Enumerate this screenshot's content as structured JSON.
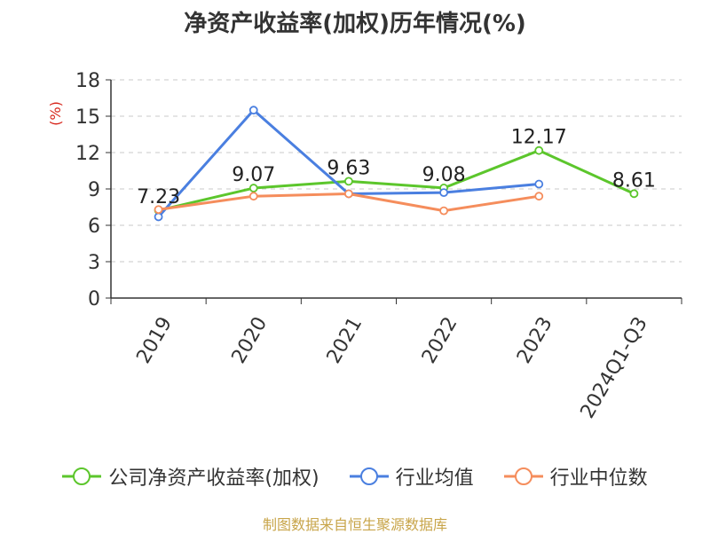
{
  "source": "制图数据来自恒生聚源数据库",
  "chart_data": {
    "type": "line",
    "title": "净资产收益率(加权)历年情况(%)",
    "ylabel": "(%)",
    "categories": [
      "2019",
      "2020",
      "2021",
      "2022",
      "2023",
      "2024Q1-Q3"
    ],
    "ylim": [
      0,
      18
    ],
    "yticks": [
      0,
      3,
      6,
      9,
      12,
      15,
      18
    ],
    "grid": true,
    "legend_position": "bottom",
    "series": [
      {
        "name": "公司净资产收益率(加权)",
        "color": "#5cc62c",
        "values": [
          7.23,
          9.07,
          9.63,
          9.08,
          12.17,
          8.61
        ],
        "labels": [
          "7.23",
          "9.07",
          "9.63",
          "9.08",
          "12.17",
          "8.61"
        ]
      },
      {
        "name": "行业均值",
        "color": "#4a7fe0",
        "values": [
          6.7,
          15.5,
          8.6,
          8.7,
          9.4,
          null
        ]
      },
      {
        "name": "行业中位数",
        "color": "#f58d5c",
        "values": [
          7.3,
          8.4,
          8.6,
          7.2,
          8.4,
          null
        ]
      }
    ]
  }
}
